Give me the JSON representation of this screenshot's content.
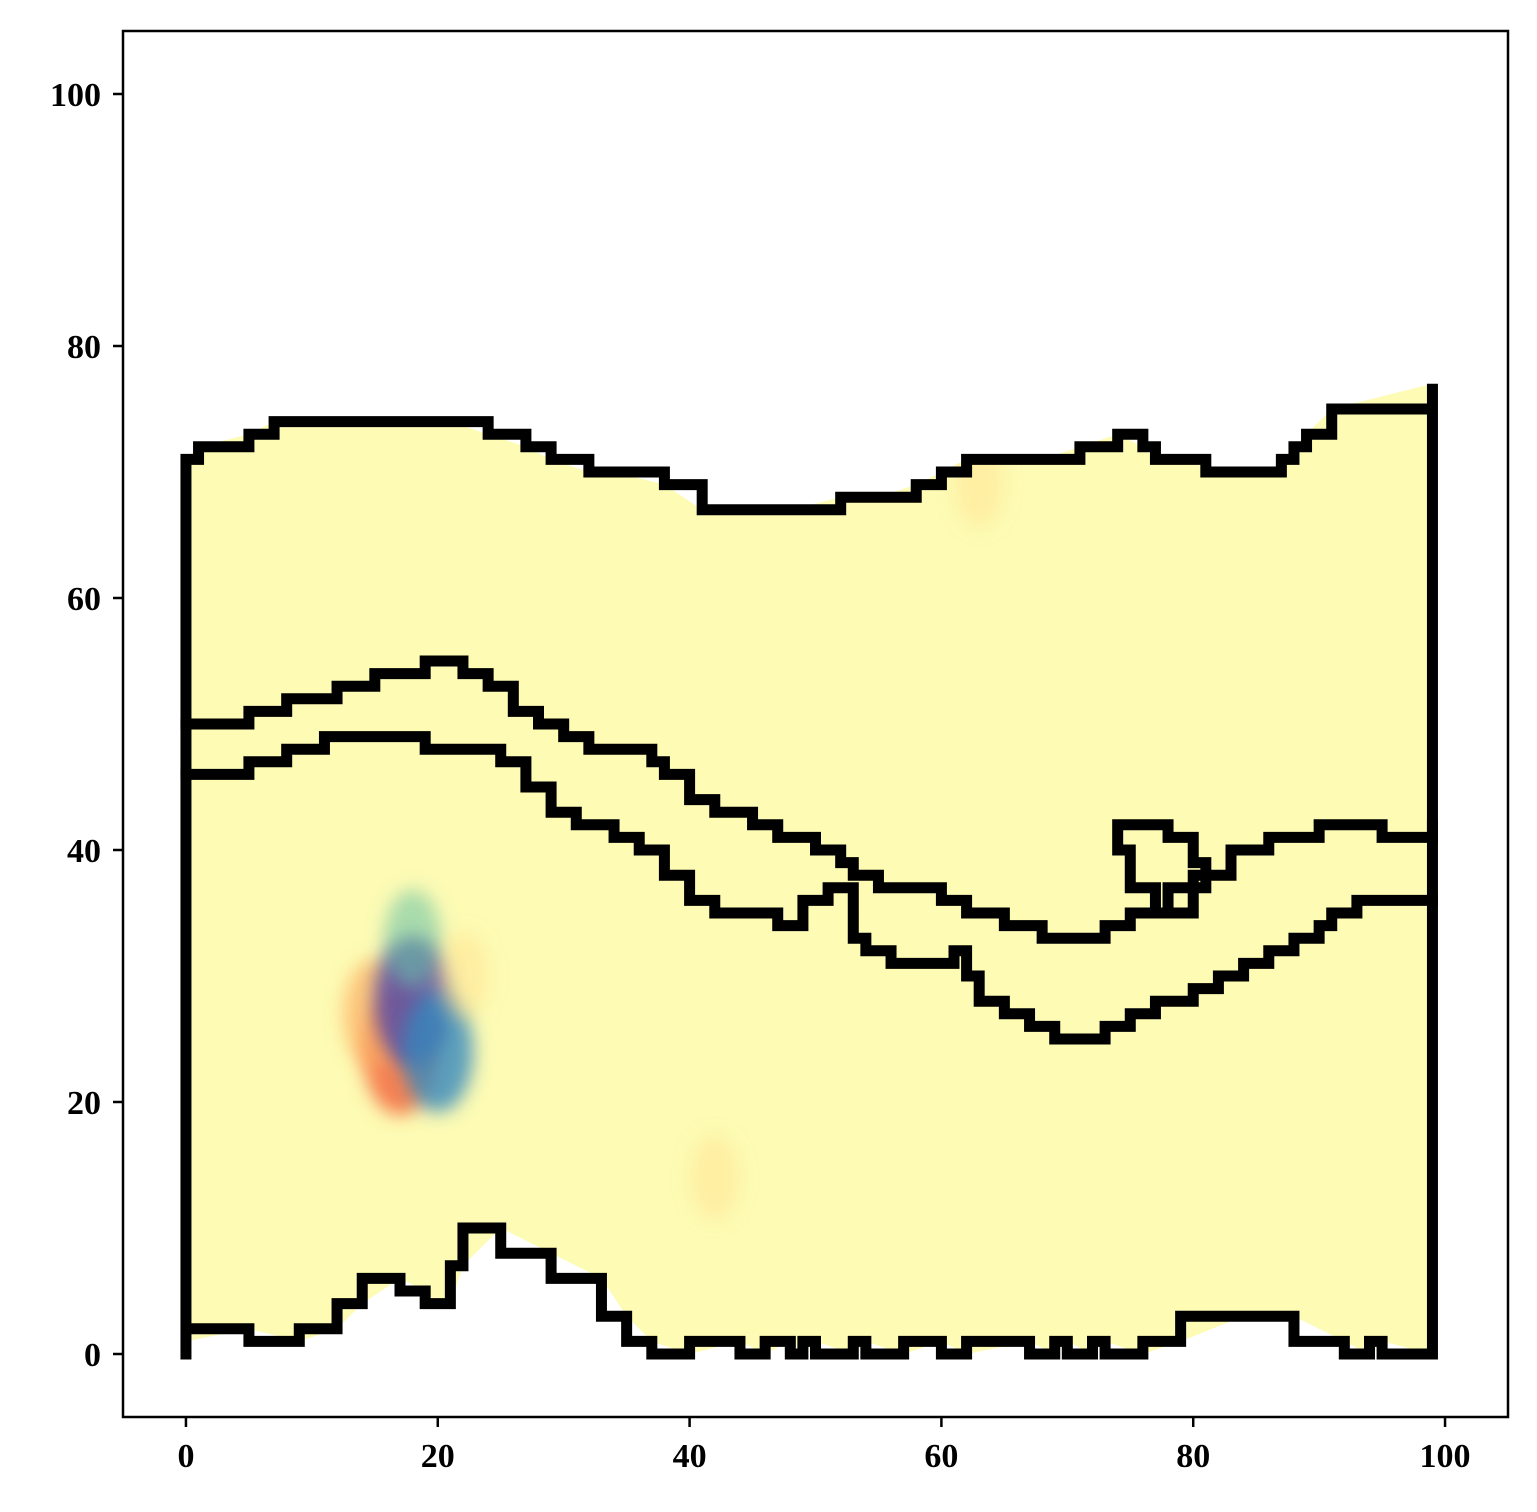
{
  "chart_data": {
    "type": "heatmap",
    "title": "",
    "xlabel": "",
    "ylabel": "",
    "xlim": [
      -5,
      105
    ],
    "ylim": [
      -5,
      105
    ],
    "x_ticks": [
      0,
      20,
      40,
      60,
      80,
      100
    ],
    "y_ticks": [
      0,
      20,
      40,
      60,
      80,
      100
    ],
    "x_tick_labels": [
      "0",
      "20",
      "40",
      "60",
      "80",
      "100"
    ],
    "y_tick_labels": [
      "0",
      "20",
      "40",
      "60",
      "80",
      "100"
    ],
    "grid": false,
    "legend": "none",
    "colormap": "Spectral",
    "background_value_color": "#fdfbb4",
    "field_extent": {
      "x": [
        0,
        99
      ],
      "y": [
        0,
        72
      ]
    },
    "anomalies": [
      {
        "x": 17,
        "y": 24,
        "value": 0.85,
        "color": "#f46d43"
      },
      {
        "x": 15,
        "y": 27,
        "value": 0.55,
        "color": "#fdae61"
      },
      {
        "x": 18,
        "y": 28,
        "value": -0.9,
        "color": "#5e4fa2"
      },
      {
        "x": 20,
        "y": 24,
        "value": -0.75,
        "color": "#3288bd"
      },
      {
        "x": 18,
        "y": 33,
        "value": -0.35,
        "color": "#66c2a5"
      },
      {
        "x": 22,
        "y": 30,
        "value": 0.2,
        "color": "#fee08b"
      },
      {
        "x": 42,
        "y": 14,
        "value": 0.15,
        "color": "#fee08b"
      },
      {
        "x": 63,
        "y": 69,
        "value": 0.15,
        "color": "#fee08b"
      }
    ],
    "series": [
      {
        "x": [
          0,
          0,
          1,
          5,
          7,
          8,
          11,
          13,
          16,
          19,
          21,
          24,
          27,
          29,
          32,
          34,
          38,
          41,
          45,
          48,
          52,
          55,
          58,
          60,
          62,
          64,
          68,
          71,
          74,
          76,
          77,
          80,
          81,
          83,
          86,
          87,
          88,
          89,
          91,
          99,
          99,
          95,
          94,
          92,
          88,
          84,
          79,
          76,
          73,
          72,
          70,
          69,
          67,
          62,
          60,
          57,
          54,
          53,
          50,
          49,
          48,
          46,
          44,
          40,
          37,
          35,
          33,
          29,
          25,
          22,
          21,
          20,
          19,
          17,
          14,
          12,
          9,
          5,
          0
        ],
        "y": [
          0,
          71,
          72,
          73,
          74,
          74,
          74,
          74,
          74,
          74,
          74,
          73,
          72,
          71,
          70,
          70,
          69,
          67,
          67,
          67,
          68,
          68,
          69,
          70,
          71,
          71,
          71,
          72,
          73,
          72,
          71,
          71,
          70,
          70,
          70,
          71,
          72,
          73,
          75,
          77,
          0,
          1,
          0,
          1,
          3,
          3,
          1,
          0,
          1,
          0,
          1,
          0,
          1,
          0,
          1,
          0,
          1,
          0,
          1,
          0,
          1,
          0,
          1,
          0,
          1,
          3,
          6,
          8,
          10,
          7,
          4,
          4,
          5,
          6,
          4,
          2,
          1,
          2,
          1
        ]
      },
      {
        "x": [
          0,
          3,
          5,
          8,
          12,
          15,
          17,
          19,
          21,
          22,
          24,
          26,
          28,
          30,
          32,
          34,
          37,
          38,
          40,
          42,
          45,
          47,
          50,
          52,
          53,
          55,
          57,
          60,
          62,
          65,
          68,
          71,
          73,
          75,
          78,
          80,
          83,
          86,
          88,
          90,
          92,
          95,
          97,
          99
        ],
        "y": [
          50,
          50,
          51,
          52,
          53,
          54,
          54,
          55,
          55,
          54,
          53,
          51,
          50,
          49,
          48,
          48,
          47,
          46,
          44,
          43,
          42,
          41,
          40,
          39,
          38,
          37,
          37,
          36,
          35,
          34,
          33,
          33,
          34,
          35,
          37,
          38,
          40,
          41,
          41,
          42,
          42,
          41,
          41,
          42
        ]
      },
      {
        "x": [
          0,
          3,
          5,
          8,
          11,
          14,
          17,
          19,
          22,
          25,
          27,
          29,
          31,
          34,
          36,
          38,
          40,
          42,
          45,
          47,
          49,
          51,
          53,
          54,
          56,
          58,
          61,
          62,
          63,
          65,
          67,
          69,
          71,
          73,
          75,
          77,
          80,
          82,
          84,
          86,
          88,
          90,
          91,
          93,
          95,
          97,
          99
        ],
        "y": [
          46,
          46,
          47,
          48,
          49,
          49,
          49,
          48,
          48,
          47,
          45,
          43,
          42,
          41,
          40,
          38,
          36,
          35,
          35,
          34,
          36,
          37,
          33,
          32,
          31,
          31,
          32,
          30,
          28,
          27,
          26,
          25,
          25,
          26,
          27,
          28,
          29,
          30,
          31,
          32,
          33,
          34,
          35,
          36,
          36,
          36,
          36
        ]
      },
      {
        "x": [
          75,
          74,
          75,
          77,
          79,
          80,
          81,
          80,
          78,
          76,
          75
        ],
        "y": [
          42,
          40,
          37,
          35,
          35,
          37,
          39,
          41,
          42,
          42,
          42
        ]
      }
    ]
  }
}
